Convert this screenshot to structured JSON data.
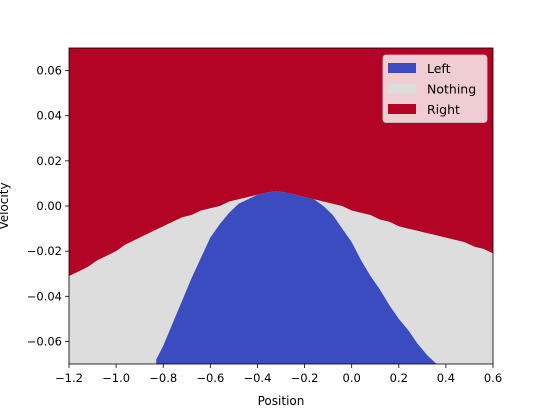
{
  "chart_data": {
    "type": "heatmap",
    "title": "",
    "xlabel": "Position",
    "ylabel": "Velocity",
    "xlim": [
      -1.2,
      0.6
    ],
    "ylim": [
      -0.07,
      0.07
    ],
    "x_ticks": [
      -1.2,
      -1.0,
      -0.8,
      -0.6,
      -0.4,
      -0.2,
      0.0,
      0.2,
      0.4,
      0.6
    ],
    "x_tick_labels": [
      "−1.2",
      "−1.0",
      "−0.8",
      "−0.6",
      "−0.4",
      "−0.2",
      "0.0",
      "0.2",
      "0.4",
      "0.6"
    ],
    "y_ticks": [
      -0.06,
      -0.04,
      -0.02,
      0.0,
      0.02,
      0.04,
      0.06
    ],
    "y_tick_labels": [
      "−0.06",
      "−0.04",
      "−0.02",
      "0.00",
      "0.02",
      "0.04",
      "0.06"
    ],
    "grid": false,
    "legend_position": "top-right",
    "classes": [
      {
        "name": "Left",
        "color": "#3b4cc0"
      },
      {
        "name": "Nothing",
        "color": "#dddddd"
      },
      {
        "name": "Right",
        "color": "#b40426"
      }
    ],
    "regions": [
      {
        "name": "Left",
        "color": "#3b4cc0",
        "boundary_top": [
          [
            -0.83,
            -0.068
          ],
          [
            -0.8,
            -0.062
          ],
          [
            -0.76,
            -0.052
          ],
          [
            -0.72,
            -0.042
          ],
          [
            -0.68,
            -0.032
          ],
          [
            -0.64,
            -0.023
          ],
          [
            -0.6,
            -0.014
          ],
          [
            -0.56,
            -0.008
          ],
          [
            -0.52,
            -0.003
          ],
          [
            -0.48,
            0.001
          ],
          [
            -0.44,
            0.003
          ],
          [
            -0.4,
            0.005
          ],
          [
            -0.36,
            0.006
          ],
          [
            -0.32,
            0.0065
          ],
          [
            -0.28,
            0.006
          ],
          [
            -0.24,
            0.005
          ],
          [
            -0.2,
            0.004
          ],
          [
            -0.16,
            0.003
          ],
          [
            -0.12,
            0.0
          ],
          [
            -0.08,
            -0.004
          ],
          [
            -0.04,
            -0.01
          ],
          [
            0.0,
            -0.016
          ],
          [
            0.04,
            -0.024
          ],
          [
            0.08,
            -0.031
          ],
          [
            0.12,
            -0.037
          ],
          [
            0.16,
            -0.044
          ],
          [
            0.2,
            -0.05
          ],
          [
            0.24,
            -0.055
          ],
          [
            0.28,
            -0.061
          ],
          [
            0.32,
            -0.066
          ],
          [
            0.36,
            -0.07
          ]
        ]
      },
      {
        "name": "Right",
        "color": "#b40426",
        "boundary_bottom": [
          [
            -1.2,
            -0.031
          ],
          [
            -1.16,
            -0.029
          ],
          [
            -1.12,
            -0.027
          ],
          [
            -1.08,
            -0.024
          ],
          [
            -1.04,
            -0.022
          ],
          [
            -1.0,
            -0.02
          ],
          [
            -0.96,
            -0.017
          ],
          [
            -0.92,
            -0.015
          ],
          [
            -0.88,
            -0.013
          ],
          [
            -0.84,
            -0.011
          ],
          [
            -0.8,
            -0.009
          ],
          [
            -0.76,
            -0.007
          ],
          [
            -0.72,
            -0.005
          ],
          [
            -0.68,
            -0.004
          ],
          [
            -0.64,
            -0.002
          ],
          [
            -0.6,
            -0.001
          ],
          [
            -0.56,
            0.0
          ],
          [
            -0.52,
            0.002
          ],
          [
            -0.48,
            0.003
          ],
          [
            -0.44,
            0.004
          ],
          [
            -0.4,
            0.005
          ],
          [
            -0.36,
            0.006
          ],
          [
            -0.32,
            0.0065
          ],
          [
            -0.28,
            0.006
          ],
          [
            -0.24,
            0.005
          ],
          [
            -0.2,
            0.004
          ],
          [
            -0.16,
            0.003
          ],
          [
            -0.12,
            0.002
          ],
          [
            -0.08,
            0.001
          ],
          [
            -0.04,
            0.0
          ],
          [
            0.0,
            -0.002
          ],
          [
            0.04,
            -0.003
          ],
          [
            0.08,
            -0.004
          ],
          [
            0.12,
            -0.006
          ],
          [
            0.16,
            -0.007
          ],
          [
            0.2,
            -0.009
          ],
          [
            0.24,
            -0.01
          ],
          [
            0.28,
            -0.011
          ],
          [
            0.32,
            -0.012
          ],
          [
            0.36,
            -0.013
          ],
          [
            0.4,
            -0.014
          ],
          [
            0.44,
            -0.015
          ],
          [
            0.48,
            -0.016
          ],
          [
            0.52,
            -0.018
          ],
          [
            0.56,
            -0.019
          ],
          [
            0.6,
            -0.021
          ]
        ]
      }
    ]
  }
}
